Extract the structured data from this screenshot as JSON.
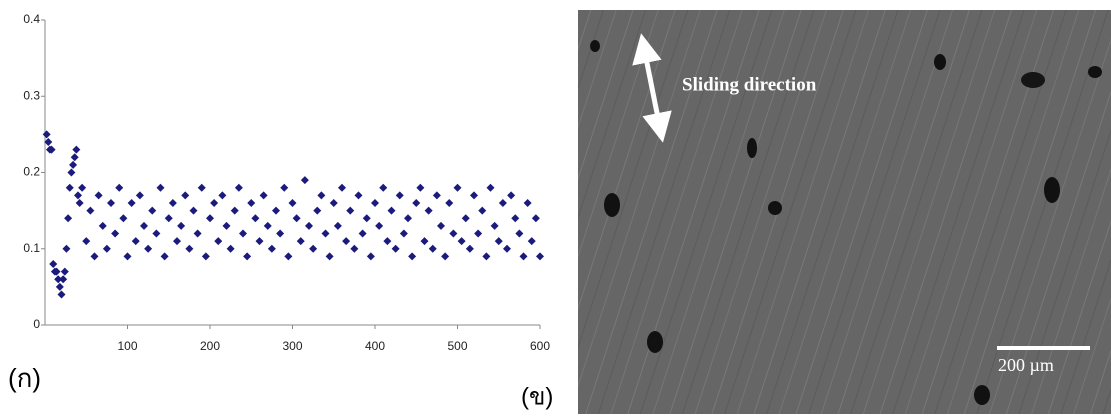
{
  "chart_data": {
    "type": "scatter",
    "x": [
      2,
      4,
      6,
      8,
      10,
      12,
      14,
      16,
      18,
      20,
      22,
      24,
      26,
      28,
      30,
      32,
      34,
      36,
      38,
      40,
      42,
      45,
      50,
      55,
      60,
      65,
      70,
      75,
      80,
      85,
      90,
      95,
      100,
      105,
      110,
      115,
      120,
      125,
      130,
      135,
      140,
      145,
      150,
      155,
      160,
      165,
      170,
      175,
      180,
      185,
      190,
      195,
      200,
      205,
      210,
      215,
      220,
      225,
      230,
      235,
      240,
      245,
      250,
      255,
      260,
      265,
      270,
      275,
      280,
      285,
      290,
      295,
      300,
      305,
      310,
      315,
      320,
      325,
      330,
      335,
      340,
      345,
      350,
      355,
      360,
      365,
      370,
      375,
      380,
      385,
      390,
      395,
      400,
      405,
      410,
      415,
      420,
      425,
      430,
      435,
      440,
      445,
      450,
      455,
      460,
      465,
      470,
      475,
      480,
      485,
      490,
      495,
      500,
      505,
      510,
      515,
      520,
      525,
      530,
      535,
      540,
      545,
      550,
      555,
      560,
      565,
      570,
      575,
      580,
      585,
      590,
      595,
      600
    ],
    "values": [
      0.25,
      0.24,
      0.23,
      0.23,
      0.08,
      0.07,
      0.07,
      0.06,
      0.05,
      0.04,
      0.06,
      0.07,
      0.1,
      0.14,
      0.18,
      0.2,
      0.21,
      0.22,
      0.23,
      0.17,
      0.16,
      0.18,
      0.11,
      0.15,
      0.09,
      0.17,
      0.13,
      0.1,
      0.16,
      0.12,
      0.18,
      0.14,
      0.09,
      0.16,
      0.11,
      0.17,
      0.13,
      0.1,
      0.15,
      0.12,
      0.18,
      0.09,
      0.14,
      0.16,
      0.11,
      0.13,
      0.17,
      0.1,
      0.15,
      0.12,
      0.18,
      0.09,
      0.14,
      0.16,
      0.11,
      0.17,
      0.13,
      0.1,
      0.15,
      0.18,
      0.12,
      0.09,
      0.16,
      0.14,
      0.11,
      0.17,
      0.13,
      0.1,
      0.15,
      0.12,
      0.18,
      0.09,
      0.16,
      0.14,
      0.11,
      0.19,
      0.13,
      0.1,
      0.15,
      0.17,
      0.12,
      0.09,
      0.16,
      0.13,
      0.18,
      0.11,
      0.15,
      0.1,
      0.17,
      0.12,
      0.14,
      0.09,
      0.16,
      0.13,
      0.18,
      0.11,
      0.15,
      0.1,
      0.17,
      0.12,
      0.14,
      0.09,
      0.16,
      0.18,
      0.11,
      0.15,
      0.1,
      0.17,
      0.13,
      0.09,
      0.16,
      0.12,
      0.18,
      0.11,
      0.14,
      0.1,
      0.17,
      0.12,
      0.15,
      0.09,
      0.18,
      0.13,
      0.11,
      0.16,
      0.1,
      0.17,
      0.14,
      0.12,
      0.09,
      0.16,
      0.11,
      0.14,
      0.09
    ],
    "color": "#1b1b7e",
    "xlim": [
      0,
      600
    ],
    "xticks": [
      100,
      200,
      300,
      400,
      500,
      600
    ],
    "ylim": [
      0,
      0.4
    ],
    "yticks": [
      0,
      0.1,
      0.2,
      0.3,
      0.4
    ]
  },
  "panels": {
    "left_label": "(ก)",
    "right_label": "(ข)"
  },
  "micrograph": {
    "annotation": "Sliding direction",
    "scale_bar": "200 µm"
  }
}
